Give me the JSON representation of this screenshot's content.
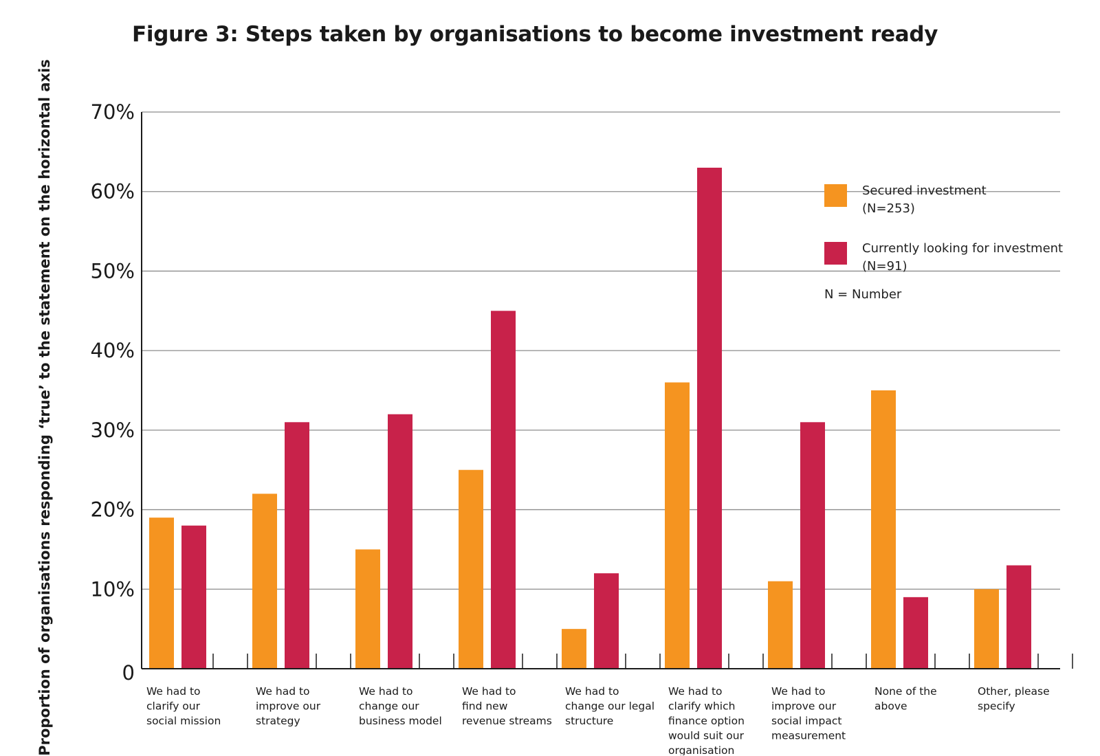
{
  "chart_data": {
    "type": "bar",
    "title": "Figure 3: Steps taken by organisations to become investment ready",
    "ylabel": "Proportion of organisations responding ‘true’ to the statement on the horizontal axis",
    "xlabel": "",
    "ylim": [
      0,
      70
    ],
    "yticks": [
      "0",
      "10%",
      "20%",
      "30%",
      "40%",
      "50%",
      "60%",
      "70%"
    ],
    "grid": true,
    "legend_position": "top-right",
    "categories": [
      [
        "We had to",
        "clarify our",
        "social mission"
      ],
      [
        "We had to",
        "improve our",
        "strategy"
      ],
      [
        "We had to",
        "change our",
        "business model"
      ],
      [
        "We had to",
        "find new",
        "revenue streams"
      ],
      [
        "We had to",
        "change our legal",
        "structure"
      ],
      [
        "We had to",
        "clarify which",
        "finance option",
        "would suit our",
        "organisation"
      ],
      [
        "We had to",
        "improve our",
        "social impact",
        "measurement"
      ],
      [
        "None of the",
        "above"
      ],
      [
        "Other, please",
        "specify"
      ]
    ],
    "series": [
      {
        "name": [
          "Secured investment",
          "(N=253)"
        ],
        "color": "#F59420",
        "values": [
          19,
          22,
          15,
          25,
          5,
          36,
          11,
          35,
          10
        ]
      },
      {
        "name": [
          "Currently looking for investment",
          "(N=91)"
        ],
        "color": "#C8224A",
        "values": [
          18,
          31,
          32,
          45,
          12,
          63,
          31,
          9,
          13
        ]
      }
    ],
    "legend_note": "N = Number"
  }
}
